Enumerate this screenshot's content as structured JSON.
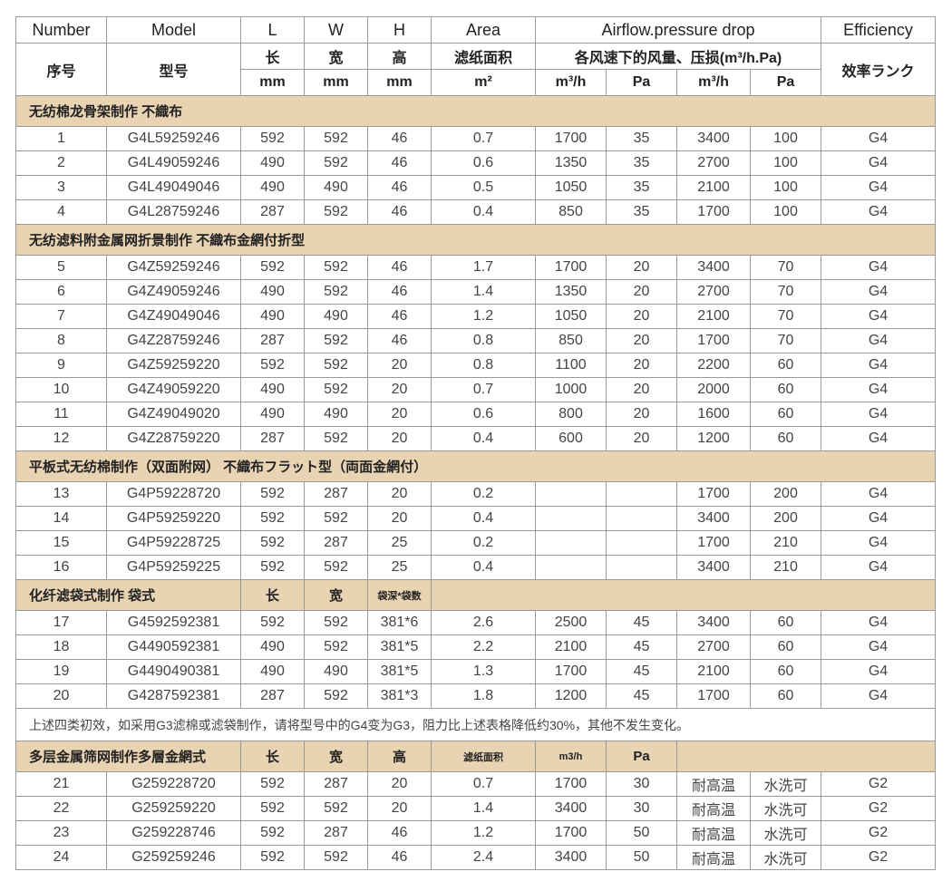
{
  "header": {
    "en": [
      "Number",
      "Model",
      "L",
      "W",
      "H",
      "Area",
      "Airflow.pressure drop",
      "Efficiency"
    ],
    "cn_number": "序号",
    "cn_model": "型号",
    "cn_l": "长",
    "cn_w": "宽",
    "cn_h": "高",
    "cn_area": "滤纸面积",
    "cn_airflow": "各风速下的风量、压损(m³/h.Pa)",
    "cn_efficiency": "效率ランク",
    "units": [
      "mm",
      "mm",
      "mm",
      "m²",
      "m³/h",
      "Pa",
      "m³/h",
      "Pa"
    ]
  },
  "colors": {
    "section_bg": "#e8d3b3",
    "grid": "#9a9a9a"
  },
  "blocks": [
    {
      "type": "section",
      "label": "无纺棉龙骨架制作 不織布"
    },
    {
      "type": "rows",
      "rows": [
        [
          "1",
          "G4L59259246",
          "592",
          "592",
          "46",
          "0.7",
          "1700",
          "35",
          "3400",
          "100",
          "G4"
        ],
        [
          "2",
          "G4L49059246",
          "490",
          "592",
          "46",
          "0.6",
          "1350",
          "35",
          "2700",
          "100",
          "G4"
        ],
        [
          "3",
          "G4L49049046",
          "490",
          "490",
          "46",
          "0.5",
          "1050",
          "35",
          "2100",
          "100",
          "G4"
        ],
        [
          "4",
          "G4L28759246",
          "287",
          "592",
          "46",
          "0.4",
          "850",
          "35",
          "1700",
          "100",
          "G4"
        ]
      ]
    },
    {
      "type": "section",
      "label": "无纺滤料附金属网折景制作  不織布金網付折型"
    },
    {
      "type": "rows",
      "rows": [
        [
          "5",
          "G4Z59259246",
          "592",
          "592",
          "46",
          "1.7",
          "1700",
          "20",
          "3400",
          "70",
          "G4"
        ],
        [
          "6",
          "G4Z49059246",
          "490",
          "592",
          "46",
          "1.4",
          "1350",
          "20",
          "2700",
          "70",
          "G4"
        ],
        [
          "7",
          "G4Z49049046",
          "490",
          "490",
          "46",
          "1.2",
          "1050",
          "20",
          "2100",
          "70",
          "G4"
        ],
        [
          "8",
          "G4Z28759246",
          "287",
          "592",
          "46",
          "0.8",
          "850",
          "20",
          "1700",
          "70",
          "G4"
        ],
        [
          "9",
          "G4Z59259220",
          "592",
          "592",
          "20",
          "0.8",
          "1100",
          "20",
          "2200",
          "60",
          "G4"
        ],
        [
          "10",
          "G4Z49059220",
          "490",
          "592",
          "20",
          "0.7",
          "1000",
          "20",
          "2000",
          "60",
          "G4"
        ],
        [
          "11",
          "G4Z49049020",
          "490",
          "490",
          "20",
          "0.6",
          "800",
          "20",
          "1600",
          "60",
          "G4"
        ],
        [
          "12",
          "G4Z28759220",
          "287",
          "592",
          "20",
          "0.4",
          "600",
          "20",
          "1200",
          "60",
          "G4"
        ]
      ]
    },
    {
      "type": "section",
      "label": "平板式无纺棉制作（双面附网） 不織布フラット型（両面金網付）"
    },
    {
      "type": "rows",
      "rows": [
        [
          "13",
          "G4P59228720",
          "592",
          "287",
          "20",
          "0.2",
          "",
          "",
          "1700",
          "200",
          "G4"
        ],
        [
          "14",
          "G4P59259220",
          "592",
          "592",
          "20",
          "0.4",
          "",
          "",
          "3400",
          "200",
          "G4"
        ],
        [
          "15",
          "G4P59228725",
          "592",
          "287",
          "25",
          "0.2",
          "",
          "",
          "1700",
          "210",
          "G4"
        ],
        [
          "16",
          "G4P59259225",
          "592",
          "592",
          "25",
          "0.4",
          "",
          "",
          "3400",
          "210",
          "G4"
        ]
      ]
    },
    {
      "type": "section",
      "label": "化纤滤袋式制作 袋式",
      "cols": [
        "长",
        "宽",
        "袋深*袋数"
      ],
      "span": 6
    },
    {
      "type": "rows",
      "rows": [
        [
          "17",
          "G4592592381",
          "592",
          "592",
          "381*6",
          "2.6",
          "2500",
          "45",
          "3400",
          "60",
          "G4"
        ],
        [
          "18",
          "G4490592381",
          "490",
          "592",
          "381*5",
          "2.2",
          "2100",
          "45",
          "2700",
          "60",
          "G4"
        ],
        [
          "19",
          "G4490490381",
          "490",
          "490",
          "381*5",
          "1.3",
          "1700",
          "45",
          "2100",
          "60",
          "G4"
        ],
        [
          "20",
          "G4287592381",
          "287",
          "592",
          "381*3",
          "1.8",
          "1200",
          "45",
          "1700",
          "60",
          "G4"
        ]
      ]
    },
    {
      "type": "note",
      "text": "上述四类初效，如采用G3滤棉或滤袋制作，请将型号中的G4变为G3，阻力比上述表格降低约30%，其他不发生变化。"
    },
    {
      "type": "section",
      "label": "多层金属筛网制作多層金網式",
      "cols": [
        "长",
        "宽",
        "高",
        "滤纸面积",
        "m3/h",
        "Pa"
      ],
      "span": 3
    },
    {
      "type": "rows",
      "rows": [
        [
          "21",
          "G259228720",
          "592",
          "287",
          "20",
          "0.7",
          "1700",
          "30",
          "耐高温",
          "水洗可",
          "G2"
        ],
        [
          "22",
          "G259259220",
          "592",
          "592",
          "20",
          "1.4",
          "3400",
          "30",
          "耐高温",
          "水洗可",
          "G2"
        ],
        [
          "23",
          "G259228746",
          "592",
          "287",
          "46",
          "1.2",
          "1700",
          "50",
          "耐高温",
          "水洗可",
          "G2"
        ],
        [
          "24",
          "G259259246",
          "592",
          "592",
          "46",
          "2.4",
          "3400",
          "50",
          "耐高温",
          "水洗可",
          "G2"
        ]
      ]
    }
  ]
}
